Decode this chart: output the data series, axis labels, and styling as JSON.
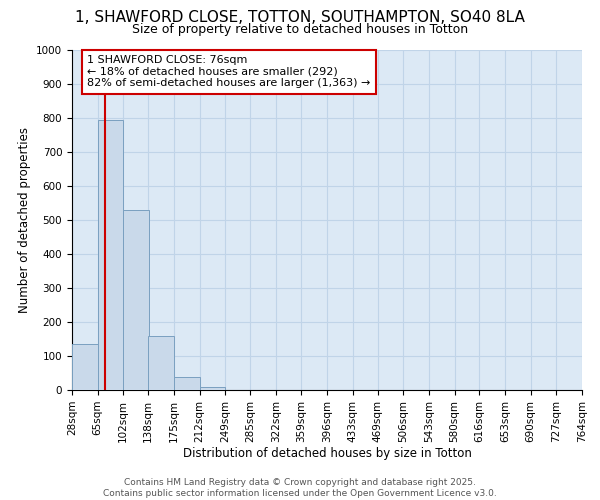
{
  "title_line1": "1, SHAWFORD CLOSE, TOTTON, SOUTHAMPTON, SO40 8LA",
  "title_line2": "Size of property relative to detached houses in Totton",
  "xlabel": "Distribution of detached houses by size in Totton",
  "ylabel": "Number of detached properties",
  "bar_left_edges": [
    28,
    65,
    102,
    138,
    175,
    212,
    249,
    285,
    322,
    359,
    396,
    433,
    469,
    506,
    543,
    580,
    616,
    653,
    690,
    727
  ],
  "bar_heights": [
    135,
    795,
    530,
    160,
    37,
    10,
    0,
    0,
    0,
    0,
    0,
    0,
    0,
    0,
    0,
    0,
    0,
    0,
    0,
    0
  ],
  "bin_width": 37,
  "bar_color": "#c9d9ea",
  "bar_edge_color": "#7aA0c0",
  "property_size": 76,
  "vline_color": "#cc0000",
  "annotation_text": "1 SHAWFORD CLOSE: 76sqm\n← 18% of detached houses are smaller (292)\n82% of semi-detached houses are larger (1,363) →",
  "annotation_box_color": "#cc0000",
  "ylim": [
    0,
    1000
  ],
  "yticks": [
    0,
    100,
    200,
    300,
    400,
    500,
    600,
    700,
    800,
    900,
    1000
  ],
  "xtick_labels": [
    "28sqm",
    "65sqm",
    "102sqm",
    "138sqm",
    "175sqm",
    "212sqm",
    "249sqm",
    "285sqm",
    "322sqm",
    "359sqm",
    "396sqm",
    "433sqm",
    "469sqm",
    "506sqm",
    "543sqm",
    "580sqm",
    "616sqm",
    "653sqm",
    "690sqm",
    "727sqm",
    "764sqm"
  ],
  "grid_color": "#c0d4e8",
  "background_color": "#dce9f5",
  "footer_line1": "Contains HM Land Registry data © Crown copyright and database right 2025.",
  "footer_line2": "Contains public sector information licensed under the Open Government Licence v3.0.",
  "title_fontsize": 11,
  "subtitle_fontsize": 9,
  "axis_label_fontsize": 8.5,
  "tick_fontsize": 7.5,
  "footer_fontsize": 6.5,
  "annot_fontsize": 8
}
